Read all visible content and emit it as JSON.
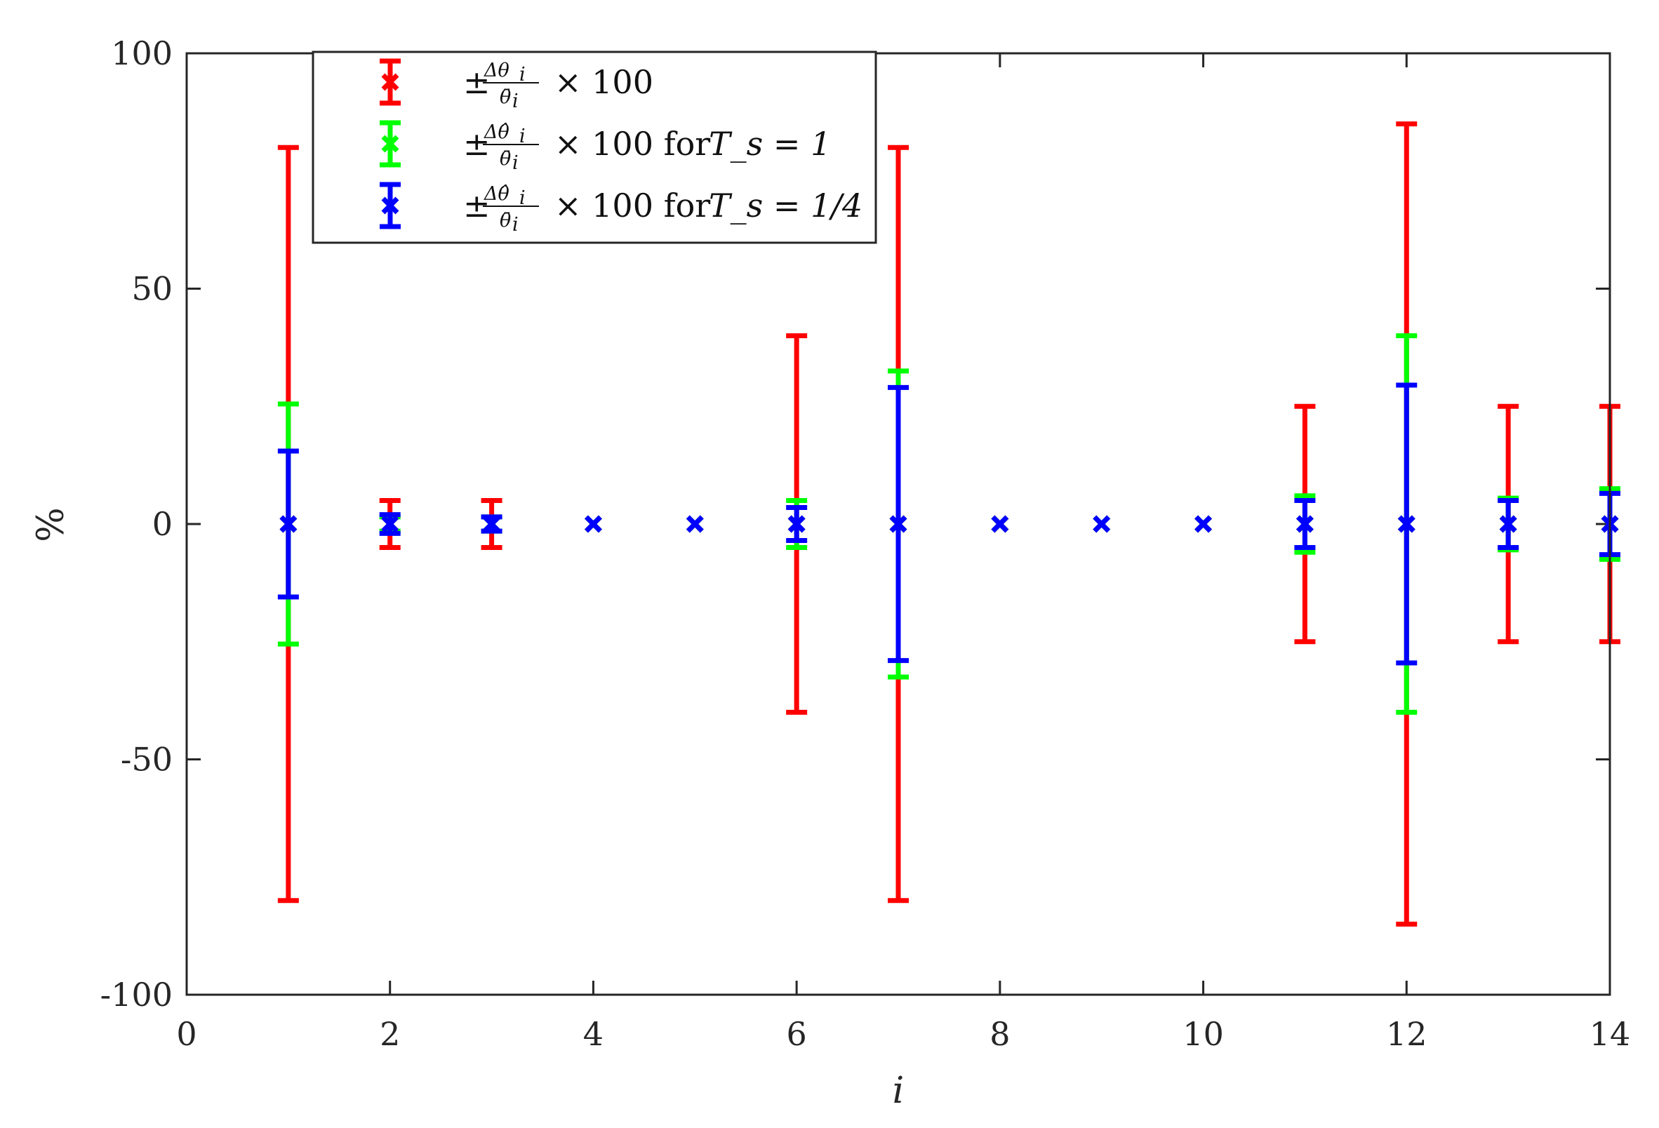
{
  "chart_data": {
    "type": "scatter",
    "xlabel": "i",
    "ylabel": "%",
    "xlim": [
      0,
      14
    ],
    "ylim": [
      -100,
      100
    ],
    "xticks": [
      "0",
      "2",
      "4",
      "6",
      "8",
      "10",
      "12",
      "14"
    ],
    "yticks": [
      "100",
      "50",
      "0",
      "-50",
      "-100"
    ],
    "grid": false,
    "legend_position": "top-left",
    "x": [
      1,
      2,
      3,
      4,
      5,
      6,
      7,
      8,
      9,
      10,
      11,
      12,
      13,
      14
    ],
    "series": [
      {
        "legend": {
          "prefix": "±",
          "numerator": "Δθ",
          "denominator": "θ̄",
          "subscript": "i",
          "suffix": "× 100",
          "condition": ""
        },
        "color": "#ff0000",
        "values": [
          0,
          0,
          0,
          0,
          0,
          0,
          0,
          0,
          0,
          0,
          0,
          0,
          0,
          0
        ],
        "errors": [
          80,
          5,
          5,
          0,
          0,
          40,
          80,
          0,
          0,
          0,
          25,
          85,
          25,
          25
        ]
      },
      {
        "legend": {
          "prefix": "±",
          "numerator": "Δθ̂",
          "denominator": "θ̄",
          "subscript": "i",
          "suffix": "× 100 for",
          "condition": "T_s = 1"
        },
        "color": "#00ff00",
        "values": [
          0,
          0,
          0,
          0,
          0,
          0,
          0,
          0,
          0,
          0,
          0,
          0,
          0,
          0
        ],
        "errors": [
          25.5,
          1.5,
          1.5,
          0,
          0,
          5,
          32.5,
          0,
          0,
          0,
          6,
          40,
          5.5,
          7.5
        ]
      },
      {
        "legend": {
          "prefix": "±",
          "numerator": "Δθ̂",
          "denominator": "θ̄",
          "subscript": "i",
          "suffix": "× 100 for",
          "condition": "T_s = 1/4"
        },
        "color": "#0000ff",
        "values": [
          0,
          0,
          0,
          0,
          0,
          0,
          0,
          0,
          0,
          0,
          0,
          0,
          0,
          0
        ],
        "errors": [
          15.5,
          2,
          1.5,
          0,
          0,
          3.5,
          29,
          0,
          0,
          0,
          5,
          29.5,
          5,
          6.5
        ]
      }
    ]
  }
}
